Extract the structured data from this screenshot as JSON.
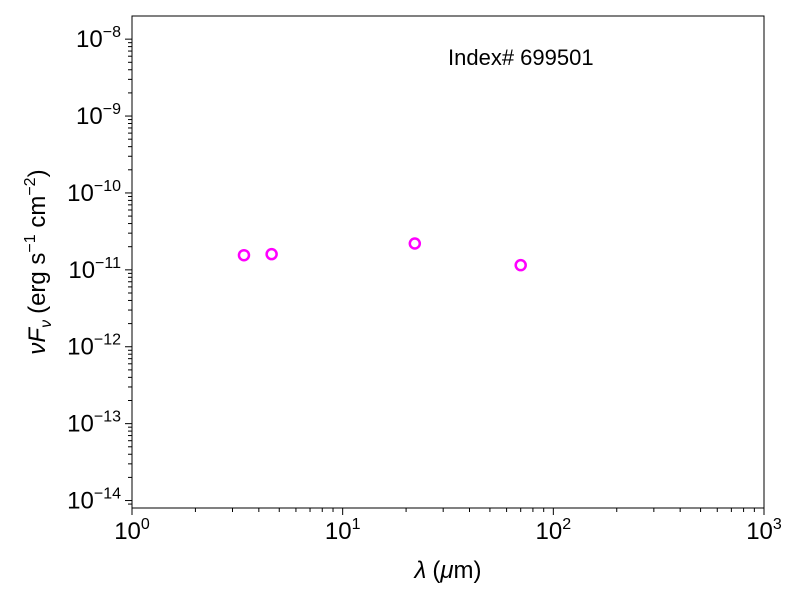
{
  "chart_data": {
    "type": "scatter",
    "annotation": "Index# 699501",
    "xlabel": {
      "symbol": "λ",
      "unit_prefix": "(",
      "unit_symbol": "μ",
      "unit_rest": "m)"
    },
    "ylabel": {
      "nu": "ν",
      "F": "F",
      "sub": "ν",
      "unit_main": "(erg s",
      "exp1": "−1",
      "unit_mid": " cm",
      "exp2": "−2",
      "unit_end": ")"
    },
    "x_scale": "log",
    "y_scale": "log",
    "xlim": [
      1,
      1000
    ],
    "ylim": [
      8e-15,
      2e-08
    ],
    "x_ticks": [
      {
        "base": "10",
        "exp": "0",
        "value": 1
      },
      {
        "base": "10",
        "exp": "1",
        "value": 10
      },
      {
        "base": "10",
        "exp": "2",
        "value": 100
      },
      {
        "base": "10",
        "exp": "3",
        "value": 1000
      }
    ],
    "y_ticks": [
      {
        "base": "10",
        "exp": "−14",
        "value": 1e-14
      },
      {
        "base": "10",
        "exp": "−13",
        "value": 1e-13
      },
      {
        "base": "10",
        "exp": "−12",
        "value": 1e-12
      },
      {
        "base": "10",
        "exp": "−11",
        "value": 1e-11
      },
      {
        "base": "10",
        "exp": "−10",
        "value": 1e-10
      },
      {
        "base": "10",
        "exp": "−9",
        "value": 1e-09
      },
      {
        "base": "10",
        "exp": "−8",
        "value": 1e-08
      }
    ],
    "grid": false,
    "marker_color": "#ff00ff",
    "points": [
      {
        "x": 3.4,
        "y": 1.55e-11
      },
      {
        "x": 4.6,
        "y": 1.6e-11
      },
      {
        "x": 22,
        "y": 2.2e-11
      },
      {
        "x": 70,
        "y": 1.15e-11
      }
    ]
  }
}
